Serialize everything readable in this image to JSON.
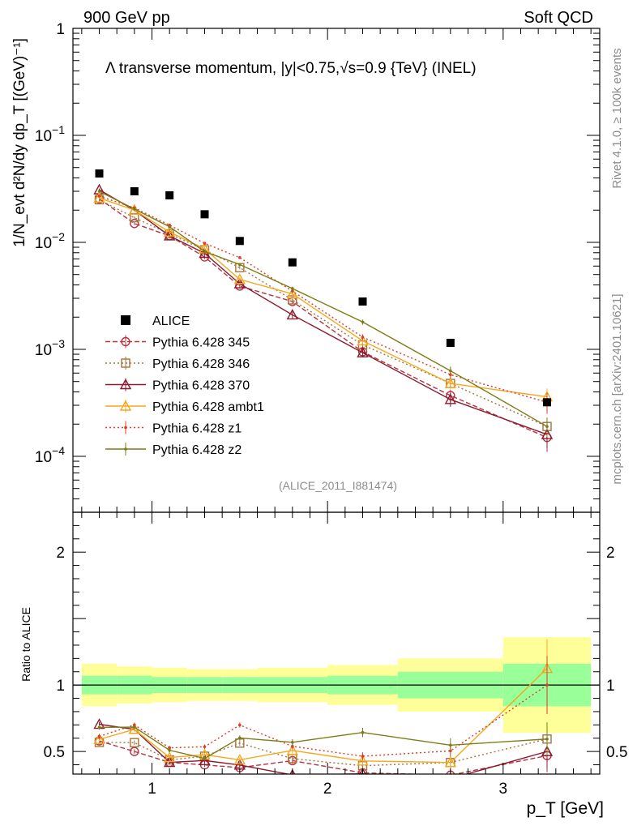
{
  "header": {
    "left": "900 GeV pp",
    "right": "Soft QCD",
    "side_rivet": "Rivet 4.1.0, ≥ 100k events",
    "side_mcplots": "mcplots.cern.ch [arXiv:2401.10621]"
  },
  "chart_data": {
    "type": "scatter",
    "title": "Λ transverse momentum, |y|<0.75,√s=0.9 {TeV} (INEL)",
    "analysis_tag": "(ALICE_2011_I881474)",
    "xlabel": "p_T [GeV]",
    "ylabel": "1/N_evt d²N/dy dp_T [(GeV)⁻¹]",
    "ratio_ylabel": "Ratio to ALICE",
    "xlim": [
      0.55,
      3.55
    ],
    "ylim": [
      3e-05,
      1
    ],
    "yscale": "log",
    "ratio_ylim": [
      0.33,
      2.3
    ],
    "x_ticks": [
      1,
      2,
      3
    ],
    "main_y_ticks": [
      {
        "value": 1,
        "base": "1",
        "exp": ""
      },
      {
        "value": 0.1,
        "base": "10",
        "exp": "−1"
      },
      {
        "value": 0.01,
        "base": "10",
        "exp": "−2"
      },
      {
        "value": 0.001,
        "base": "10",
        "exp": "−3"
      },
      {
        "value": 0.0001,
        "base": "10",
        "exp": "−4"
      }
    ],
    "ratio_y_ticks": [
      {
        "value": 0.5,
        "label": "0.5"
      },
      {
        "value": 1,
        "label": "1"
      },
      {
        "value": 2,
        "label": "2"
      }
    ],
    "bins": [
      [
        0.6,
        0.8
      ],
      [
        0.8,
        1.0
      ],
      [
        1.0,
        1.2
      ],
      [
        1.2,
        1.4
      ],
      [
        1.4,
        1.6
      ],
      [
        1.6,
        2.0
      ],
      [
        2.0,
        2.4
      ],
      [
        2.4,
        3.0
      ],
      [
        3.0,
        3.5
      ]
    ],
    "x": [
      0.7,
      0.9,
      1.1,
      1.3,
      1.5,
      1.8,
      2.2,
      2.7,
      3.25
    ],
    "band_inner": [
      0.07,
      0.07,
      0.06,
      0.06,
      0.06,
      0.06,
      0.07,
      0.1,
      0.16
    ],
    "band_outer": [
      0.16,
      0.14,
      0.13,
      0.12,
      0.12,
      0.13,
      0.15,
      0.2,
      0.36
    ],
    "data": {
      "name": "ALICE",
      "values": [
        0.044,
        0.03,
        0.0275,
        0.0183,
        0.0103,
        0.0065,
        0.0028,
        0.00115,
        0.00032
      ]
    },
    "series": [
      {
        "name": "Pythia 6.428 345",
        "color": "#b83240",
        "marker": "circle",
        "dash": "6,3",
        "values": [
          0.0255,
          0.015,
          0.0115,
          0.0073,
          0.0039,
          0.0028,
          0.00095,
          0.00037,
          0.00015
        ],
        "errors": [
          0.0008,
          0.0005,
          0.0004,
          0.0003,
          0.0002,
          0.00015,
          8e-05,
          5e-05,
          4e-05
        ]
      },
      {
        "name": "Pythia 6.428 346",
        "color": "#a4743c",
        "marker": "square",
        "dash": "2,3",
        "values": [
          0.025,
          0.017,
          0.012,
          0.0085,
          0.0058,
          0.0029,
          0.0011,
          0.00048,
          0.00019
        ],
        "errors": [
          0.0008,
          0.0005,
          0.0004,
          0.0003,
          0.0002,
          0.00015,
          8e-05,
          5e-05,
          4e-05
        ]
      },
      {
        "name": "Pythia 6.428 370",
        "color": "#8b1a2f",
        "marker": "triangle",
        "dash": "",
        "values": [
          0.031,
          0.02,
          0.0115,
          0.0079,
          0.0041,
          0.0021,
          0.00093,
          0.00034,
          0.00016
        ],
        "errors": [
          0.0008,
          0.0005,
          0.0004,
          0.0003,
          0.0002,
          0.00015,
          8e-05,
          5e-05,
          4e-05
        ]
      },
      {
        "name": "Pythia 6.428 ambt1",
        "color": "#f5a81f",
        "marker": "triangle",
        "dash": "",
        "values": [
          0.026,
          0.02,
          0.0125,
          0.0087,
          0.0045,
          0.0033,
          0.0012,
          0.00048,
          0.00036
        ],
        "errors": [
          0.0008,
          0.0005,
          0.0004,
          0.0003,
          0.0002,
          0.00015,
          8e-05,
          5e-05,
          7e-05
        ]
      },
      {
        "name": "Pythia 6.428 z1",
        "color": "#e03a28",
        "marker": "dot",
        "dash": "2,3",
        "values": [
          0.027,
          0.021,
          0.0145,
          0.0098,
          0.0072,
          0.0035,
          0.0013,
          0.00058,
          0.00032
        ],
        "errors": [
          0.0008,
          0.0005,
          0.0004,
          0.0003,
          0.0002,
          0.00015,
          8e-05,
          5e-05,
          7e-05
        ]
      },
      {
        "name": "Pythia 6.428 z2",
        "color": "#7c7c16",
        "marker": "dot",
        "dash": "",
        "values": [
          0.03,
          0.0205,
          0.014,
          0.0082,
          0.0062,
          0.0037,
          0.0018,
          0.00063,
          0.00019
        ],
        "errors": [
          0.0008,
          0.0005,
          0.0004,
          0.0003,
          0.0002,
          0.00015,
          0.0001,
          6e-05,
          4e-05
        ]
      }
    ]
  }
}
